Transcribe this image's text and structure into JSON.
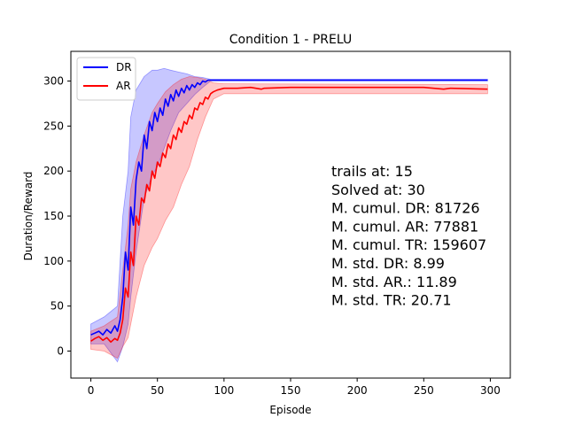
{
  "chart_data": {
    "type": "line",
    "title": "Condition 1 - PRELU",
    "xlabel": "Episode",
    "ylabel": "Duration/Reward",
    "xlim": [
      -15,
      315
    ],
    "ylim": [
      -30,
      333
    ],
    "xticks": [
      0,
      50,
      100,
      150,
      200,
      250,
      300
    ],
    "yticks": [
      0,
      50,
      100,
      150,
      200,
      250,
      300
    ],
    "legend": {
      "position": "top-left"
    },
    "series": [
      {
        "name": "DR",
        "color": "#0000ff",
        "band_color": "#0000ff",
        "points": [
          [
            0,
            18
          ],
          [
            3,
            20
          ],
          [
            6,
            22
          ],
          [
            9,
            18
          ],
          [
            12,
            24
          ],
          [
            15,
            20
          ],
          [
            18,
            28
          ],
          [
            20,
            22
          ],
          [
            22,
            35
          ],
          [
            24,
            60
          ],
          [
            26,
            110
          ],
          [
            28,
            90
          ],
          [
            30,
            160
          ],
          [
            32,
            140
          ],
          [
            34,
            190
          ],
          [
            36,
            210
          ],
          [
            38,
            200
          ],
          [
            40,
            240
          ],
          [
            42,
            225
          ],
          [
            44,
            255
          ],
          [
            46,
            245
          ],
          [
            48,
            265
          ],
          [
            50,
            255
          ],
          [
            52,
            270
          ],
          [
            54,
            262
          ],
          [
            56,
            280
          ],
          [
            58,
            272
          ],
          [
            60,
            285
          ],
          [
            62,
            278
          ],
          [
            64,
            290
          ],
          [
            66,
            283
          ],
          [
            68,
            292
          ],
          [
            70,
            287
          ],
          [
            72,
            295
          ],
          [
            74,
            290
          ],
          [
            76,
            296
          ],
          [
            78,
            293
          ],
          [
            80,
            298
          ],
          [
            82,
            296
          ],
          [
            84,
            300
          ],
          [
            86,
            299
          ],
          [
            88,
            301
          ],
          [
            90,
            301
          ],
          [
            100,
            301
          ],
          [
            150,
            301
          ],
          [
            200,
            301
          ],
          [
            250,
            301
          ],
          [
            298,
            301
          ]
        ],
        "band": [
          [
            0,
            8,
            30
          ],
          [
            10,
            8,
            38
          ],
          [
            20,
            -12,
            50
          ],
          [
            24,
            5,
            150
          ],
          [
            28,
            30,
            200
          ],
          [
            30,
            60,
            260
          ],
          [
            34,
            110,
            290
          ],
          [
            40,
            170,
            305
          ],
          [
            46,
            195,
            312
          ],
          [
            50,
            205,
            312
          ],
          [
            55,
            225,
            314
          ],
          [
            60,
            245,
            312
          ],
          [
            66,
            265,
            310
          ],
          [
            72,
            275,
            308
          ],
          [
            78,
            285,
            305
          ],
          [
            84,
            293,
            304
          ],
          [
            90,
            300,
            302
          ],
          [
            298,
            300,
            302
          ]
        ]
      },
      {
        "name": "AR",
        "color": "#ff0000",
        "band_color": "#ff0000",
        "points": [
          [
            0,
            11
          ],
          [
            3,
            14
          ],
          [
            6,
            16
          ],
          [
            9,
            12
          ],
          [
            12,
            15
          ],
          [
            15,
            10
          ],
          [
            18,
            14
          ],
          [
            20,
            12
          ],
          [
            22,
            20
          ],
          [
            24,
            35
          ],
          [
            26,
            70
          ],
          [
            28,
            60
          ],
          [
            30,
            110
          ],
          [
            32,
            95
          ],
          [
            34,
            150
          ],
          [
            36,
            140
          ],
          [
            38,
            170
          ],
          [
            40,
            165
          ],
          [
            42,
            185
          ],
          [
            44,
            178
          ],
          [
            46,
            200
          ],
          [
            48,
            192
          ],
          [
            50,
            210
          ],
          [
            52,
            205
          ],
          [
            54,
            220
          ],
          [
            56,
            215
          ],
          [
            58,
            230
          ],
          [
            60,
            225
          ],
          [
            62,
            240
          ],
          [
            64,
            235
          ],
          [
            66,
            248
          ],
          [
            68,
            243
          ],
          [
            70,
            255
          ],
          [
            72,
            252
          ],
          [
            74,
            262
          ],
          [
            76,
            258
          ],
          [
            78,
            270
          ],
          [
            80,
            268
          ],
          [
            82,
            276
          ],
          [
            84,
            274
          ],
          [
            86,
            282
          ],
          [
            88,
            280
          ],
          [
            90,
            286
          ],
          [
            92,
            288
          ],
          [
            95,
            290
          ],
          [
            100,
            292
          ],
          [
            110,
            292
          ],
          [
            120,
            293
          ],
          [
            128,
            291
          ],
          [
            130,
            292
          ],
          [
            150,
            293
          ],
          [
            200,
            293
          ],
          [
            250,
            293
          ],
          [
            265,
            291
          ],
          [
            270,
            292
          ],
          [
            298,
            291
          ]
        ],
        "band": [
          [
            0,
            2,
            22
          ],
          [
            10,
            0,
            28
          ],
          [
            20,
            -8,
            38
          ],
          [
            24,
            5,
            90
          ],
          [
            28,
            15,
            140
          ],
          [
            30,
            30,
            180
          ],
          [
            34,
            60,
            210
          ],
          [
            40,
            95,
            240
          ],
          [
            46,
            115,
            265
          ],
          [
            50,
            125,
            275
          ],
          [
            56,
            145,
            288
          ],
          [
            62,
            160,
            296
          ],
          [
            68,
            185,
            302
          ],
          [
            74,
            205,
            305
          ],
          [
            80,
            235,
            304
          ],
          [
            86,
            260,
            302
          ],
          [
            92,
            280,
            298
          ],
          [
            100,
            286,
            297
          ],
          [
            298,
            286,
            296
          ]
        ]
      }
    ],
    "annotations": [
      "trails at: 15",
      "Solved at: 30",
      "M. cumul. DR: 81726",
      "M. cumul. AR: 77881",
      "M. cumul. TR: 159607",
      "M. std. DR: 8.99",
      "M. std. AR.: 11.89",
      "M. std. TR: 20.71"
    ]
  }
}
